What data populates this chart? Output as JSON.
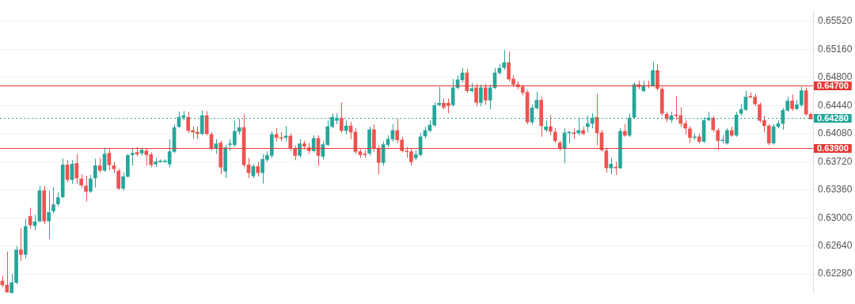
{
  "chart_data": {
    "type": "candlestick",
    "categories": [
      null,
      null,
      null,
      null,
      null,
      null,
      null,
      null,
      null,
      null,
      null,
      null,
      null,
      null,
      null,
      null,
      null,
      null,
      null,
      null,
      null,
      null,
      null,
      null,
      null,
      null,
      null,
      null,
      null,
      null,
      null,
      null,
      null,
      null,
      null,
      null,
      null,
      null,
      null,
      null,
      null,
      null,
      null,
      null,
      null,
      null,
      null,
      null,
      null,
      null,
      null,
      null,
      null,
      null,
      null,
      null,
      null,
      null,
      null,
      null,
      null,
      null,
      null,
      null,
      null,
      null,
      null,
      null,
      null,
      null,
      null,
      null,
      null,
      null,
      null,
      null,
      null,
      null,
      null,
      null,
      null,
      null,
      null,
      null,
      null,
      null,
      null,
      null,
      null,
      null,
      null,
      null,
      null,
      null,
      null,
      null,
      null,
      null,
      null,
      null,
      null,
      null,
      null,
      null,
      null,
      null,
      null,
      null,
      null,
      null,
      null,
      null,
      null,
      null,
      null,
      null,
      null,
      null,
      null,
      null,
      null,
      null,
      null,
      null,
      null,
      null,
      null,
      null,
      null,
      null,
      null,
      null,
      null,
      null,
      null,
      null,
      null,
      null,
      null,
      null,
      null,
      null,
      null,
      null,
      null,
      null,
      null,
      null,
      null,
      null,
      null,
      null,
      null,
      null,
      null,
      null,
      null,
      null,
      null,
      null,
      null,
      null,
      null,
      null,
      null,
      null,
      null,
      null,
      null,
      null,
      null,
      null,
      null,
      null,
      null
    ],
    "ohlc": [
      [
        0.6219,
        0.6226,
        0.6211,
        0.6214
      ],
      [
        0.6214,
        0.6257,
        0.6204,
        0.6205
      ],
      [
        0.6204,
        0.6228,
        0.6204,
        0.6217
      ],
      [
        0.6217,
        0.6264,
        0.6215,
        0.6259
      ],
      [
        0.6259,
        0.6287,
        0.6245,
        0.6253
      ],
      [
        0.6253,
        0.6299,
        0.6248,
        0.6289
      ],
      [
        0.6302,
        0.6313,
        0.6286,
        0.6291
      ],
      [
        0.629,
        0.6304,
        0.6284,
        0.6295
      ],
      [
        0.6296,
        0.6341,
        0.6294,
        0.6335
      ],
      [
        0.6335,
        0.6341,
        0.6292,
        0.6296
      ],
      [
        0.6296,
        0.6335,
        0.6273,
        0.6307
      ],
      [
        0.6309,
        0.6339,
        0.6306,
        0.6317
      ],
      [
        0.6318,
        0.6333,
        0.6315,
        0.6326
      ],
      [
        0.6327,
        0.6376,
        0.6325,
        0.6368
      ],
      [
        0.6368,
        0.6374,
        0.6346,
        0.6349
      ],
      [
        0.6349,
        0.6374,
        0.6344,
        0.6369
      ],
      [
        0.637,
        0.6382,
        0.6344,
        0.6351
      ],
      [
        0.635,
        0.6356,
        0.6339,
        0.6342
      ],
      [
        0.6341,
        0.6354,
        0.6321,
        0.6334
      ],
      [
        0.6334,
        0.6355,
        0.6332,
        0.635
      ],
      [
        0.6351,
        0.6376,
        0.6339,
        0.6367
      ],
      [
        0.6367,
        0.6377,
        0.6358,
        0.6361
      ],
      [
        0.6361,
        0.639,
        0.6359,
        0.6382
      ],
      [
        0.6383,
        0.6389,
        0.6361,
        0.6368
      ],
      [
        0.6367,
        0.6372,
        0.6358,
        0.6363
      ],
      [
        0.636,
        0.6363,
        0.6336,
        0.6338
      ],
      [
        0.6338,
        0.6358,
        0.6335,
        0.6353
      ],
      [
        0.6353,
        0.6382,
        0.6352,
        0.638
      ],
      [
        0.6381,
        0.6389,
        0.6367,
        0.6383
      ],
      [
        0.6384,
        0.6391,
        0.6379,
        0.6382
      ],
      [
        0.6383,
        0.639,
        0.638,
        0.6387
      ],
      [
        0.6386,
        0.6389,
        0.6367,
        0.6381
      ],
      [
        0.6381,
        0.6384,
        0.6365,
        0.6368
      ],
      [
        0.6369,
        0.6377,
        0.6365,
        0.6372
      ],
      [
        0.6372,
        0.6375,
        0.6371,
        0.6373
      ],
      [
        0.6372,
        0.6375,
        0.6371,
        0.6373
      ],
      [
        0.6369,
        0.6401,
        0.6365,
        0.6385
      ],
      [
        0.6385,
        0.642,
        0.6383,
        0.6416
      ],
      [
        0.6417,
        0.6436,
        0.6415,
        0.6429
      ],
      [
        0.6429,
        0.6437,
        0.6425,
        0.6431
      ],
      [
        0.6429,
        0.6436,
        0.6409,
        0.6412
      ],
      [
        0.6412,
        0.6417,
        0.6401,
        0.641
      ],
      [
        0.641,
        0.6417,
        0.6401,
        0.6408
      ],
      [
        0.6408,
        0.6438,
        0.6406,
        0.6431
      ],
      [
        0.6431,
        0.6437,
        0.6406,
        0.6408
      ],
      [
        0.6407,
        0.641,
        0.6386,
        0.639
      ],
      [
        0.639,
        0.6401,
        0.6382,
        0.6395
      ],
      [
        0.6396,
        0.6399,
        0.6356,
        0.6365
      ],
      [
        0.636,
        0.6394,
        0.6351,
        0.639
      ],
      [
        0.6394,
        0.6401,
        0.6386,
        0.6395
      ],
      [
        0.6394,
        0.6425,
        0.6391,
        0.6411
      ],
      [
        0.6411,
        0.6427,
        0.6407,
        0.6416
      ],
      [
        0.6416,
        0.6433,
        0.6365,
        0.6368
      ],
      [
        0.6368,
        0.6377,
        0.6351,
        0.6358
      ],
      [
        0.6354,
        0.6369,
        0.6351,
        0.6366
      ],
      [
        0.6366,
        0.6372,
        0.6353,
        0.6358
      ],
      [
        0.6358,
        0.6382,
        0.6344,
        0.6375
      ],
      [
        0.6375,
        0.6385,
        0.6372,
        0.638
      ],
      [
        0.638,
        0.6411,
        0.6377,
        0.6407
      ],
      [
        0.6407,
        0.6415,
        0.6398,
        0.6403
      ],
      [
        0.6403,
        0.641,
        0.6398,
        0.6402
      ],
      [
        0.6403,
        0.6418,
        0.6398,
        0.6405
      ],
      [
        0.6405,
        0.6408,
        0.6386,
        0.6389
      ],
      [
        0.6389,
        0.6393,
        0.6374,
        0.638
      ],
      [
        0.638,
        0.6401,
        0.6377,
        0.6395
      ],
      [
        0.6395,
        0.6399,
        0.6388,
        0.6392
      ],
      [
        0.639,
        0.6396,
        0.6382,
        0.6386
      ],
      [
        0.6386,
        0.6406,
        0.6384,
        0.6402
      ],
      [
        0.6402,
        0.6406,
        0.6367,
        0.638
      ],
      [
        0.6379,
        0.6398,
        0.6375,
        0.6394
      ],
      [
        0.6394,
        0.6425,
        0.6392,
        0.6417
      ],
      [
        0.6417,
        0.6434,
        0.6415,
        0.6429
      ],
      [
        0.6425,
        0.6434,
        0.642,
        0.6428
      ],
      [
        0.6428,
        0.6448,
        0.6409,
        0.6412
      ],
      [
        0.6412,
        0.6425,
        0.6407,
        0.6418
      ],
      [
        0.6418,
        0.6423,
        0.6401,
        0.641
      ],
      [
        0.641,
        0.6415,
        0.6382,
        0.6385
      ],
      [
        0.6385,
        0.6388,
        0.6377,
        0.6381
      ],
      [
        0.6382,
        0.6387,
        0.6377,
        0.6381
      ],
      [
        0.6383,
        0.6417,
        0.638,
        0.6413
      ],
      [
        0.6413,
        0.642,
        0.6385,
        0.6389
      ],
      [
        0.6389,
        0.6393,
        0.6356,
        0.6371
      ],
      [
        0.6371,
        0.6398,
        0.6367,
        0.6394
      ],
      [
        0.6394,
        0.6406,
        0.6391,
        0.6401
      ],
      [
        0.6401,
        0.642,
        0.6398,
        0.6412
      ],
      [
        0.6412,
        0.6427,
        0.6396,
        0.64
      ],
      [
        0.64,
        0.6404,
        0.6384,
        0.6386
      ],
      [
        0.6386,
        0.6391,
        0.6377,
        0.6385
      ],
      [
        0.6385,
        0.6389,
        0.6367,
        0.6372
      ],
      [
        0.6377,
        0.6387,
        0.6374,
        0.6381
      ],
      [
        0.6381,
        0.6409,
        0.6379,
        0.6404
      ],
      [
        0.6405,
        0.6417,
        0.6402,
        0.6412
      ],
      [
        0.6412,
        0.6425,
        0.641,
        0.6419
      ],
      [
        0.6419,
        0.6448,
        0.6417,
        0.6444
      ],
      [
        0.6445,
        0.6468,
        0.6443,
        0.6447
      ],
      [
        0.6447,
        0.6453,
        0.6439,
        0.6442
      ],
      [
        0.6447,
        0.6453,
        0.6434,
        0.6444
      ],
      [
        0.6445,
        0.6478,
        0.6443,
        0.6467
      ],
      [
        0.6467,
        0.6483,
        0.6465,
        0.6477
      ],
      [
        0.6477,
        0.6492,
        0.6474,
        0.6486
      ],
      [
        0.6486,
        0.6491,
        0.646,
        0.6463
      ],
      [
        0.6463,
        0.6473,
        0.6461,
        0.6466
      ],
      [
        0.6467,
        0.6472,
        0.6443,
        0.6448
      ],
      [
        0.6448,
        0.6471,
        0.6443,
        0.6467
      ],
      [
        0.6467,
        0.6472,
        0.6445,
        0.6451
      ],
      [
        0.6451,
        0.6471,
        0.6439,
        0.6467
      ],
      [
        0.6467,
        0.6492,
        0.6465,
        0.6486
      ],
      [
        0.6486,
        0.6497,
        0.6484,
        0.6492
      ],
      [
        0.6493,
        0.6515,
        0.649,
        0.6499
      ],
      [
        0.6499,
        0.6513,
        0.6475,
        0.6478
      ],
      [
        0.6478,
        0.6483,
        0.6468,
        0.6471
      ],
      [
        0.6471,
        0.6475,
        0.6465,
        0.6468
      ],
      [
        0.6468,
        0.6471,
        0.6457,
        0.6461
      ],
      [
        0.6461,
        0.6464,
        0.642,
        0.6423
      ],
      [
        0.6423,
        0.6445,
        0.642,
        0.6441
      ],
      [
        0.6441,
        0.6462,
        0.6439,
        0.6451
      ],
      [
        0.6451,
        0.6455,
        0.6404,
        0.6418
      ],
      [
        0.6413,
        0.6425,
        0.641,
        0.6417
      ],
      [
        0.6417,
        0.6432,
        0.6406,
        0.6411
      ],
      [
        0.641,
        0.6415,
        0.6396,
        0.6399
      ],
      [
        0.6396,
        0.6399,
        0.6386,
        0.6389
      ],
      [
        0.6389,
        0.6415,
        0.637,
        0.6409
      ],
      [
        0.6409,
        0.6411,
        0.6396,
        0.6409
      ],
      [
        0.6409,
        0.6415,
        0.6401,
        0.6408
      ],
      [
        0.6409,
        0.6429,
        0.6406,
        0.6412
      ],
      [
        0.6412,
        0.6417,
        0.6406,
        0.6408
      ],
      [
        0.6417,
        0.6431,
        0.641,
        0.6421
      ],
      [
        0.6421,
        0.6434,
        0.6415,
        0.6428
      ],
      [
        0.6429,
        0.6459,
        0.6393,
        0.6409
      ],
      [
        0.6409,
        0.6413,
        0.6385,
        0.6387
      ],
      [
        0.6386,
        0.639,
        0.6358,
        0.6364
      ],
      [
        0.6364,
        0.6377,
        0.6356,
        0.6369
      ],
      [
        0.6365,
        0.6372,
        0.6355,
        0.6364
      ],
      [
        0.6364,
        0.6415,
        0.6363,
        0.6411
      ],
      [
        0.6411,
        0.642,
        0.6404,
        0.6406
      ],
      [
        0.6406,
        0.6434,
        0.6404,
        0.6428
      ],
      [
        0.6429,
        0.6474,
        0.6427,
        0.6471
      ],
      [
        0.6471,
        0.6476,
        0.6465,
        0.6468
      ],
      [
        0.6463,
        0.6476,
        0.6461,
        0.647
      ],
      [
        0.647,
        0.6476,
        0.6466,
        0.6469
      ],
      [
        0.647,
        0.65,
        0.6468,
        0.6489
      ],
      [
        0.6489,
        0.6497,
        0.6463,
        0.6466
      ],
      [
        0.6465,
        0.6468,
        0.6431,
        0.6434
      ],
      [
        0.6433,
        0.6436,
        0.6423,
        0.6427
      ],
      [
        0.6426,
        0.6436,
        0.6422,
        0.6431
      ],
      [
        0.6432,
        0.6456,
        0.6426,
        0.6431
      ],
      [
        0.6431,
        0.6442,
        0.6417,
        0.6421
      ],
      [
        0.6421,
        0.6425,
        0.6407,
        0.6415
      ],
      [
        0.6414,
        0.6418,
        0.6396,
        0.6403
      ],
      [
        0.6403,
        0.6408,
        0.64,
        0.6403
      ],
      [
        0.6404,
        0.6408,
        0.6396,
        0.6398
      ],
      [
        0.6398,
        0.6429,
        0.6396,
        0.6425
      ],
      [
        0.6426,
        0.6436,
        0.6424,
        0.6428
      ],
      [
        0.6428,
        0.6431,
        0.641,
        0.6413
      ],
      [
        0.6412,
        0.6415,
        0.6387,
        0.6399
      ],
      [
        0.6399,
        0.6406,
        0.6396,
        0.64
      ],
      [
        0.6396,
        0.6415,
        0.6394,
        0.6412
      ],
      [
        0.6412,
        0.6417,
        0.6404,
        0.6406
      ],
      [
        0.6406,
        0.6436,
        0.6404,
        0.6432
      ],
      [
        0.6434,
        0.6446,
        0.6431,
        0.6439
      ],
      [
        0.6439,
        0.6463,
        0.6437,
        0.6455
      ],
      [
        0.6456,
        0.6461,
        0.6453,
        0.6455
      ],
      [
        0.6455,
        0.6459,
        0.6443,
        0.6446
      ],
      [
        0.6445,
        0.6448,
        0.6422,
        0.6425
      ],
      [
        0.6425,
        0.6431,
        0.641,
        0.6418
      ],
      [
        0.6418,
        0.642,
        0.6393,
        0.6396
      ],
      [
        0.6396,
        0.642,
        0.6394,
        0.6417
      ],
      [
        0.6417,
        0.6425,
        0.6415,
        0.6421
      ],
      [
        0.6421,
        0.6441,
        0.6413,
        0.6438
      ],
      [
        0.6438,
        0.6455,
        0.6436,
        0.645
      ],
      [
        0.645,
        0.6458,
        0.6437,
        0.644
      ],
      [
        0.644,
        0.6451,
        0.6438,
        0.6445
      ],
      [
        0.6445,
        0.6468,
        0.6442,
        0.6463
      ],
      [
        0.6463,
        0.6467,
        0.6431,
        0.6433
      ],
      [
        0.6433,
        0.6435,
        0.6426,
        0.6427
      ]
    ],
    "colors": [
      "#ef5350",
      "#ef5350",
      "#26a69a",
      "#26a69a",
      "#ef5350",
      "#26a69a",
      "#ef5350",
      "#26a69a",
      "#26a69a",
      "#ef5350",
      "#26a69a",
      "#26a69a",
      "#26a69a",
      "#26a69a",
      "#ef5350",
      "#26a69a",
      "#ef5350",
      "#ef5350",
      "#ef5350",
      "#26a69a",
      "#26a69a",
      "#ef5350",
      "#26a69a",
      "#ef5350",
      "#ef5350",
      "#ef5350",
      "#26a69a",
      "#26a69a",
      "#26a69a",
      "#ef5350",
      "#26a69a",
      "#ef5350",
      "#ef5350",
      "#26a69a",
      "#26a69a",
      "#26a69a",
      "#26a69a",
      "#26a69a",
      "#26a69a",
      "#26a69a",
      "#ef5350",
      "#ef5350",
      "#ef5350",
      "#26a69a",
      "#ef5350",
      "#ef5350",
      "#26a69a",
      "#ef5350",
      "#26a69a",
      "#26a69a",
      "#26a69a",
      "#26a69a",
      "#ef5350",
      "#ef5350",
      "#26a69a",
      "#ef5350",
      "#26a69a",
      "#26a69a",
      "#26a69a",
      "#ef5350",
      "#ef5350",
      "#26a69a",
      "#ef5350",
      "#ef5350",
      "#26a69a",
      "#ef5350",
      "#ef5350",
      "#26a69a",
      "#ef5350",
      "#26a69a",
      "#26a69a",
      "#26a69a",
      "#26a69a",
      "#ef5350",
      "#26a69a",
      "#ef5350",
      "#ef5350",
      "#ef5350",
      "#ef5350",
      "#26a69a",
      "#ef5350",
      "#ef5350",
      "#26a69a",
      "#26a69a",
      "#26a69a",
      "#ef5350",
      "#ef5350",
      "#ef5350",
      "#ef5350",
      "#26a69a",
      "#26a69a",
      "#26a69a",
      "#26a69a",
      "#26a69a",
      "#26a69a",
      "#ef5350",
      "#ef5350",
      "#26a69a",
      "#26a69a",
      "#26a69a",
      "#ef5350",
      "#26a69a",
      "#ef5350",
      "#26a69a",
      "#ef5350",
      "#26a69a",
      "#26a69a",
      "#26a69a",
      "#26a69a",
      "#ef5350",
      "#ef5350",
      "#ef5350",
      "#ef5350",
      "#ef5350",
      "#26a69a",
      "#26a69a",
      "#ef5350",
      "#26a69a",
      "#ef5350",
      "#ef5350",
      "#ef5350",
      "#26a69a",
      "#26a69a",
      "#ef5350",
      "#26a69a",
      "#ef5350",
      "#26a69a",
      "#26a69a",
      "#ef5350",
      "#ef5350",
      "#ef5350",
      "#26a69a",
      "#ef5350",
      "#26a69a",
      "#ef5350",
      "#26a69a",
      "#26a69a",
      "#ef5350",
      "#26a69a",
      "#ef5350",
      "#26a69a",
      "#ef5350",
      "#ef5350",
      "#ef5350",
      "#26a69a",
      "#ef5350",
      "#ef5350",
      "#ef5350",
      "#ef5350",
      "#26a69a",
      "#ef5350",
      "#26a69a",
      "#26a69a",
      "#ef5350",
      "#ef5350",
      "#26a69a",
      "#26a69a",
      "#ef5350",
      "#26a69a",
      "#26a69a",
      "#26a69a",
      "#ef5350",
      "#ef5350",
      "#ef5350",
      "#ef5350",
      "#ef5350",
      "#26a69a",
      "#26a69a",
      "#26a69a",
      "#26a69a",
      "#ef5350",
      "#26a69a",
      "#26a69a",
      "#ef5350",
      "#ef5350"
    ],
    "ylim": [
      0.6203,
      0.6566
    ],
    "yticks": [
      {
        "value": 0.6228,
        "label": "0.62280"
      },
      {
        "value": 0.6264,
        "label": "0.62640"
      },
      {
        "value": 0.63,
        "label": "0.63000"
      },
      {
        "value": 0.6336,
        "label": "0.63360"
      },
      {
        "value": 0.6372,
        "label": "0.63720"
      },
      {
        "value": 0.6408,
        "label": "0.64080"
      },
      {
        "value": 0.6444,
        "label": "0.64440"
      },
      {
        "value": 0.648,
        "label": "0.64800"
      },
      {
        "value": 0.6516,
        "label": "0.65160"
      },
      {
        "value": 0.6552,
        "label": "0.65520"
      }
    ],
    "tick_labels": "y",
    "grid": "y",
    "legend": false,
    "ref_lines": [
      {
        "axis": "y",
        "value": 0.647,
        "label": "0.64700",
        "color": "#e53935",
        "line_style": "solid"
      },
      {
        "axis": "y",
        "value": 0.6428,
        "label": "0.64280",
        "color": "#26a69a",
        "line_style": "dotted"
      },
      {
        "axis": "y",
        "value": 0.639,
        "label": "0.63900",
        "color": "#e53935",
        "line_style": "solid"
      }
    ]
  }
}
